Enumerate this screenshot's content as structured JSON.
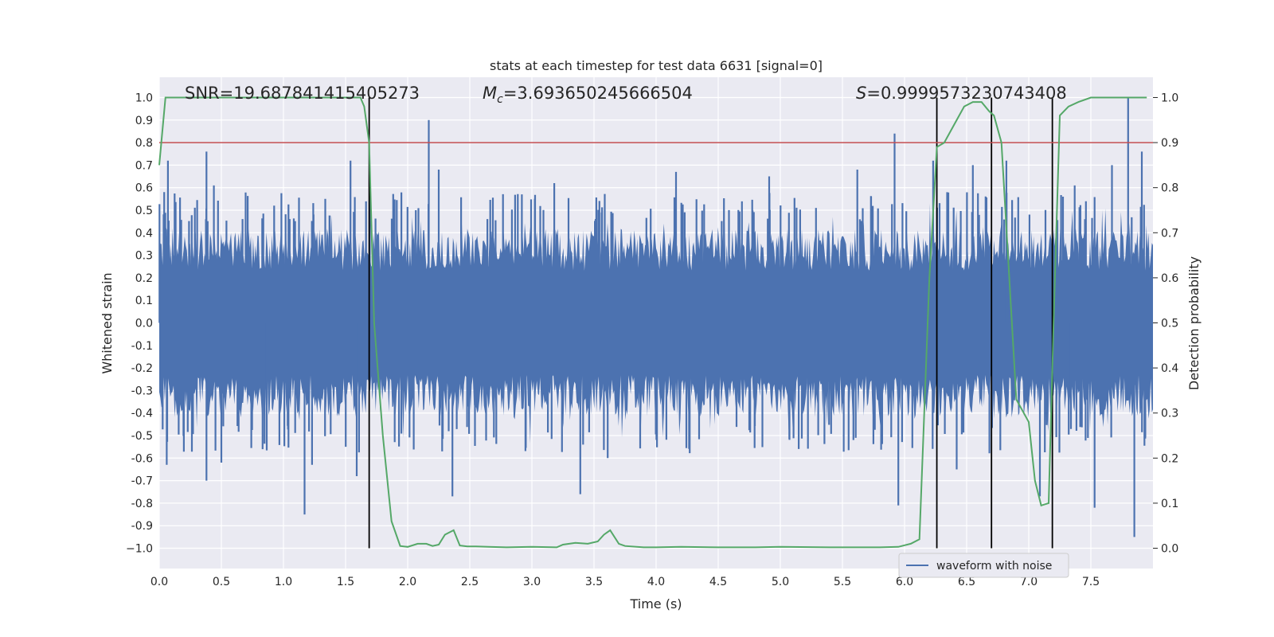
{
  "chart_data": {
    "type": "line",
    "title": "stats at each timestep for test data 6631 [signal=0]",
    "xlabel": "Time (s)",
    "ylabel_left": "Whitened strain",
    "ylabel_right": "Detection probability",
    "xlim": [
      0.0,
      8.0
    ],
    "ylim_left": [
      -1.09,
      1.09
    ],
    "ylim_right": [
      -0.045,
      1.045
    ],
    "x_ticks": [
      "0.0",
      "0.5",
      "1.0",
      "1.5",
      "2.0",
      "2.5",
      "3.0",
      "3.5",
      "4.0",
      "4.5",
      "5.0",
      "5.5",
      "6.0",
      "6.5",
      "7.0",
      "7.5"
    ],
    "y_ticks_left": [
      "1.0",
      "0.9",
      "0.8",
      "0.7",
      "0.6",
      "0.5",
      "0.4",
      "0.3",
      "0.2",
      "0.1",
      "0.0",
      "-0.1",
      "-0.2",
      "-0.3",
      "-0.4",
      "-0.5",
      "-0.6",
      "-0.7",
      "-0.8",
      "-0.9",
      "−1.0"
    ],
    "y_ticks_right": [
      "1.0",
      "0.9",
      "0.8",
      "0.7",
      "0.6",
      "0.5",
      "0.4",
      "0.3",
      "0.2",
      "0.1",
      "0.0"
    ],
    "annotations": {
      "snr": "SNR=19.687841415405273",
      "mc_symbol": "M",
      "mc_sub": "c",
      "mc_value": "=3.693650245666504",
      "s_symbol": "S",
      "s_value": "=0.9999573230743408"
    },
    "threshold": {
      "value": 0.9,
      "axis": "right",
      "color": "#c44e52"
    },
    "vertical_lines_x": [
      1.69,
      6.26,
      6.7,
      7.19
    ],
    "vertical_line_y_range": [
      0.0,
      1.0
    ],
    "legend": {
      "label": "waveform with noise",
      "placement": "lower-right"
    },
    "grid": true,
    "series": [
      {
        "name": "waveform with noise",
        "axis": "left",
        "color": "#4c72b0",
        "typical_amplitude": 0.42,
        "peaks": [
          {
            "x": 0.04,
            "y": 0.58
          },
          {
            "x": 0.06,
            "y": -0.63
          },
          {
            "x": 0.07,
            "y": 0.72
          },
          {
            "x": 0.38,
            "y": 0.76
          },
          {
            "x": 0.38,
            "y": -0.7
          },
          {
            "x": 0.44,
            "y": 0.61
          },
          {
            "x": 0.5,
            "y": -0.62
          },
          {
            "x": 1.17,
            "y": -0.85
          },
          {
            "x": 1.23,
            "y": -0.63
          },
          {
            "x": 1.54,
            "y": 0.72
          },
          {
            "x": 1.59,
            "y": -0.68
          },
          {
            "x": 2.17,
            "y": 0.9
          },
          {
            "x": 2.25,
            "y": 0.68
          },
          {
            "x": 2.36,
            "y": -0.77
          },
          {
            "x": 3.18,
            "y": 0.62
          },
          {
            "x": 3.39,
            "y": -0.76
          },
          {
            "x": 3.61,
            "y": -0.6
          },
          {
            "x": 4.16,
            "y": 0.67
          },
          {
            "x": 4.91,
            "y": 0.65
          },
          {
            "x": 5.62,
            "y": 0.68
          },
          {
            "x": 5.92,
            "y": 0.84
          },
          {
            "x": 5.95,
            "y": -0.81
          },
          {
            "x": 6.23,
            "y": 0.72
          },
          {
            "x": 6.42,
            "y": -0.65
          },
          {
            "x": 6.55,
            "y": 0.7
          },
          {
            "x": 6.82,
            "y": 0.72
          },
          {
            "x": 7.09,
            "y": -0.77
          },
          {
            "x": 7.37,
            "y": 0.61
          },
          {
            "x": 7.53,
            "y": -0.82
          },
          {
            "x": 7.67,
            "y": 0.7
          },
          {
            "x": 7.8,
            "y": 1.0
          },
          {
            "x": 7.85,
            "y": -0.95
          },
          {
            "x": 7.91,
            "y": 0.76
          }
        ]
      },
      {
        "name": "Detection probability",
        "axis": "right",
        "color": "#55a868",
        "x": [
          0.0,
          0.05,
          0.1,
          0.15,
          0.2,
          0.3,
          0.5,
          0.75,
          1.0,
          1.25,
          1.5,
          1.62,
          1.65,
          1.69,
          1.73,
          1.8,
          1.87,
          1.94,
          2.0,
          2.08,
          2.15,
          2.2,
          2.25,
          2.3,
          2.37,
          2.42,
          2.48,
          2.55,
          2.65,
          2.8,
          3.0,
          3.2,
          3.25,
          3.35,
          3.45,
          3.53,
          3.58,
          3.63,
          3.7,
          3.75,
          3.9,
          4.0,
          4.2,
          4.5,
          4.8,
          5.0,
          5.4,
          5.8,
          5.95,
          6.05,
          6.12,
          6.2,
          6.26,
          6.32,
          6.4,
          6.48,
          6.55,
          6.62,
          6.68,
          6.72,
          6.78,
          6.9,
          7.0,
          7.05,
          7.1,
          7.16,
          7.2,
          7.25,
          7.32,
          7.4,
          7.5,
          7.6,
          7.7,
          7.8,
          7.95
        ],
        "y": [
          0.85,
          1.0,
          1.0,
          1.0,
          1.0,
          1.0,
          1.0,
          1.0,
          1.0,
          1.0,
          1.0,
          1.0,
          0.98,
          0.9,
          0.5,
          0.25,
          0.06,
          0.005,
          0.003,
          0.01,
          0.01,
          0.005,
          0.008,
          0.03,
          0.04,
          0.006,
          0.004,
          0.004,
          0.003,
          0.002,
          0.003,
          0.002,
          0.008,
          0.012,
          0.01,
          0.015,
          0.03,
          0.04,
          0.01,
          0.005,
          0.002,
          0.002,
          0.003,
          0.002,
          0.002,
          0.003,
          0.002,
          0.002,
          0.003,
          0.01,
          0.02,
          0.6,
          0.89,
          0.9,
          0.94,
          0.98,
          0.99,
          0.99,
          0.97,
          0.96,
          0.9,
          0.33,
          0.28,
          0.15,
          0.095,
          0.1,
          0.5,
          0.96,
          0.98,
          0.99,
          1.0,
          1.0,
          1.0,
          1.0,
          1.0
        ]
      }
    ]
  }
}
